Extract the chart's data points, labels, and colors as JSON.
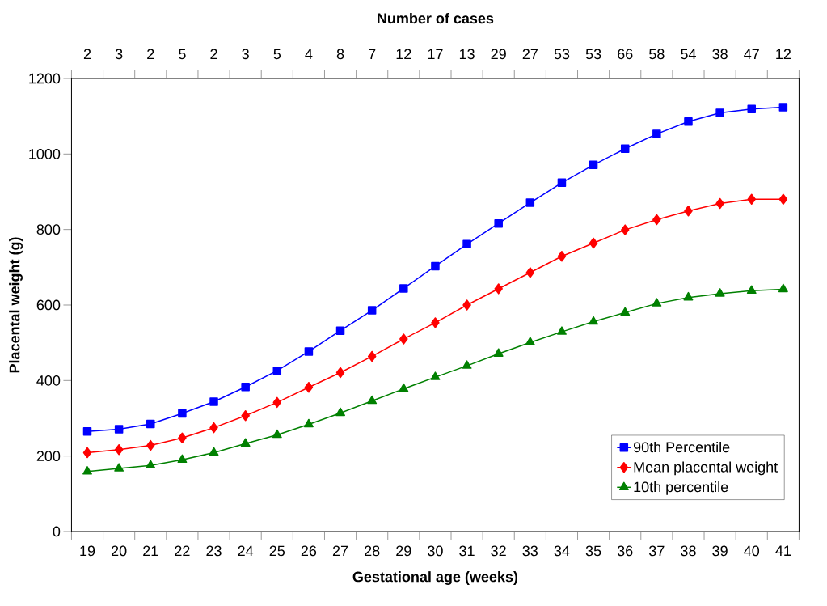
{
  "chart_data": {
    "type": "line",
    "xlabel": "Gestational age (weeks)",
    "ylabel": "Placental weight (g)",
    "x2label": "Number of cases",
    "categories": [
      "19",
      "20",
      "21",
      "22",
      "23",
      "24",
      "25",
      "26",
      "27",
      "28",
      "29",
      "30",
      "31",
      "32",
      "33",
      "34",
      "35",
      "36",
      "37",
      "38",
      "39",
      "40",
      "41"
    ],
    "series": [
      {
        "name": "90th Percentile",
        "color": "#0000ff",
        "marker": "square",
        "values": [
          265,
          271,
          285,
          313,
          344,
          383,
          426,
          477,
          532,
          586,
          644,
          703,
          761,
          816,
          871,
          924,
          971,
          1014,
          1053,
          1086,
          1109,
          1119,
          1124
        ]
      },
      {
        "name": "Mean placental weight",
        "color": "#ff0000",
        "marker": "diamond",
        "values": [
          209,
          217,
          228,
          248,
          275,
          307,
          342,
          382,
          421,
          464,
          510,
          553,
          600,
          643,
          686,
          729,
          764,
          799,
          826,
          849,
          869,
          880,
          880
        ]
      },
      {
        "name": "10th percentile",
        "color": "#008000",
        "marker": "triangle",
        "values": [
          159,
          167,
          175,
          190,
          209,
          233,
          256,
          284,
          314,
          346,
          378,
          409,
          439,
          471,
          501,
          529,
          556,
          580,
          604,
          620,
          630,
          638,
          642
        ]
      }
    ],
    "ylim": [
      0,
      1200
    ],
    "yticks": [
      0,
      200,
      400,
      600,
      800,
      1000,
      1200
    ],
    "legend": "bottom right",
    "line_style": "solid",
    "annotations": [
      "2",
      "3",
      "2",
      "5",
      "2",
      "3",
      "5",
      "4",
      "8",
      "7",
      "12",
      "17",
      "13",
      "29",
      "27",
      "53",
      "53",
      "66",
      "58",
      "54",
      "38",
      "47",
      "12"
    ]
  }
}
